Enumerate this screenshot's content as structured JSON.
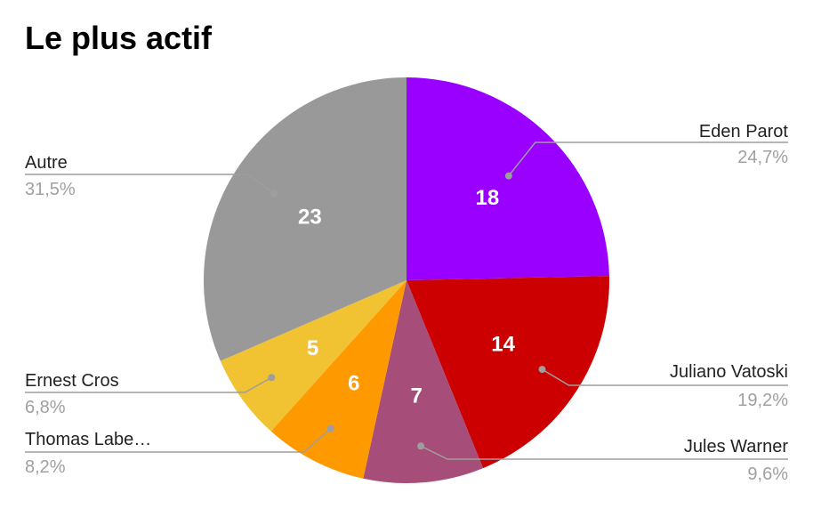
{
  "chart_data": {
    "type": "pie",
    "title": "Le plus actif",
    "slices": [
      {
        "label": "Eden Parot",
        "value": 18,
        "percent": "24,7%",
        "color": "#9900ff"
      },
      {
        "label": "Juliano Vatoski",
        "value": 14,
        "percent": "19,2%",
        "color": "#cc0000"
      },
      {
        "label": "Jules Warner",
        "value": 7,
        "percent": "9,6%",
        "color": "#a64d79"
      },
      {
        "label": "Thomas Labe…",
        "value": 6,
        "percent": "8,2%",
        "color": "#ff9900"
      },
      {
        "label": "Ernest Cros",
        "value": 5,
        "percent": "6,8%",
        "color": "#f1c232"
      },
      {
        "label": "Autre",
        "value": 23,
        "percent": "31,5%",
        "color": "#999999"
      }
    ],
    "start_angle": "12 o'clock",
    "direction": "clockwise",
    "legend": "none"
  }
}
